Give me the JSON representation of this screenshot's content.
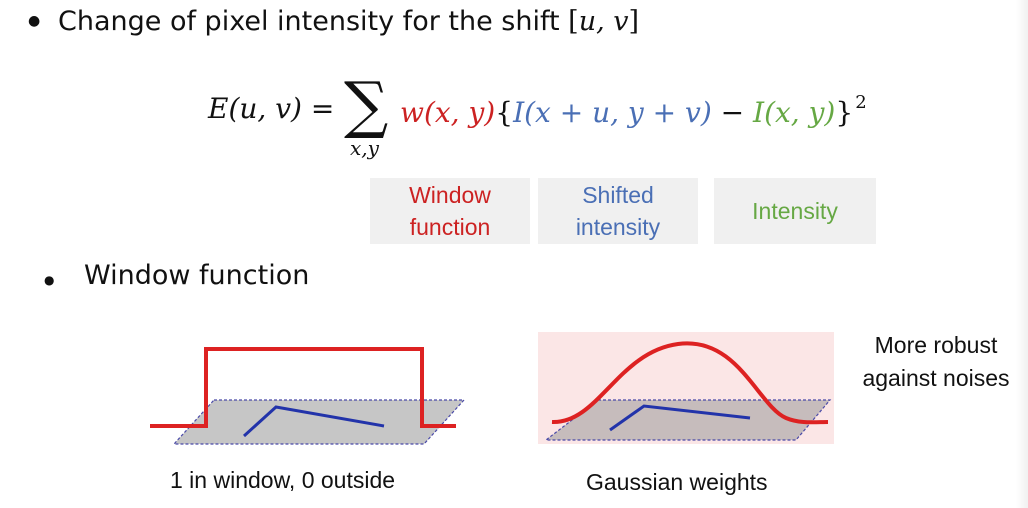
{
  "bullets": {
    "main": {
      "text": "Change of pixel intensity for the shift ",
      "math": "u, v",
      "bracket_open": "[",
      "bracket_close": "]"
    },
    "window": {
      "text": "Window function"
    }
  },
  "equation": {
    "lhs": "E(u, v) = ",
    "sigma": "∑",
    "subscript": "x,y",
    "window_term": "w(x, y)",
    "brace_open": "{",
    "shifted_term": "I(x + u, y + v)",
    "minus": " − ",
    "intensity_term": "I(x, y)",
    "brace_close": "}",
    "exponent": "2"
  },
  "labels": {
    "window": "Window\nfunction",
    "shifted": "Shifted\nintensity",
    "intensity": "Intensity"
  },
  "figures": {
    "left_caption": "1 in window, 0 outside",
    "right_caption": "Gaussian weights",
    "right_note": "More robust\nagainst noises"
  },
  "colors": {
    "window": "#cc2222",
    "shifted": "#4a6fb5",
    "intensity": "#66a844",
    "window_curve": "#dd2222",
    "patch_line": "#2233aa"
  }
}
